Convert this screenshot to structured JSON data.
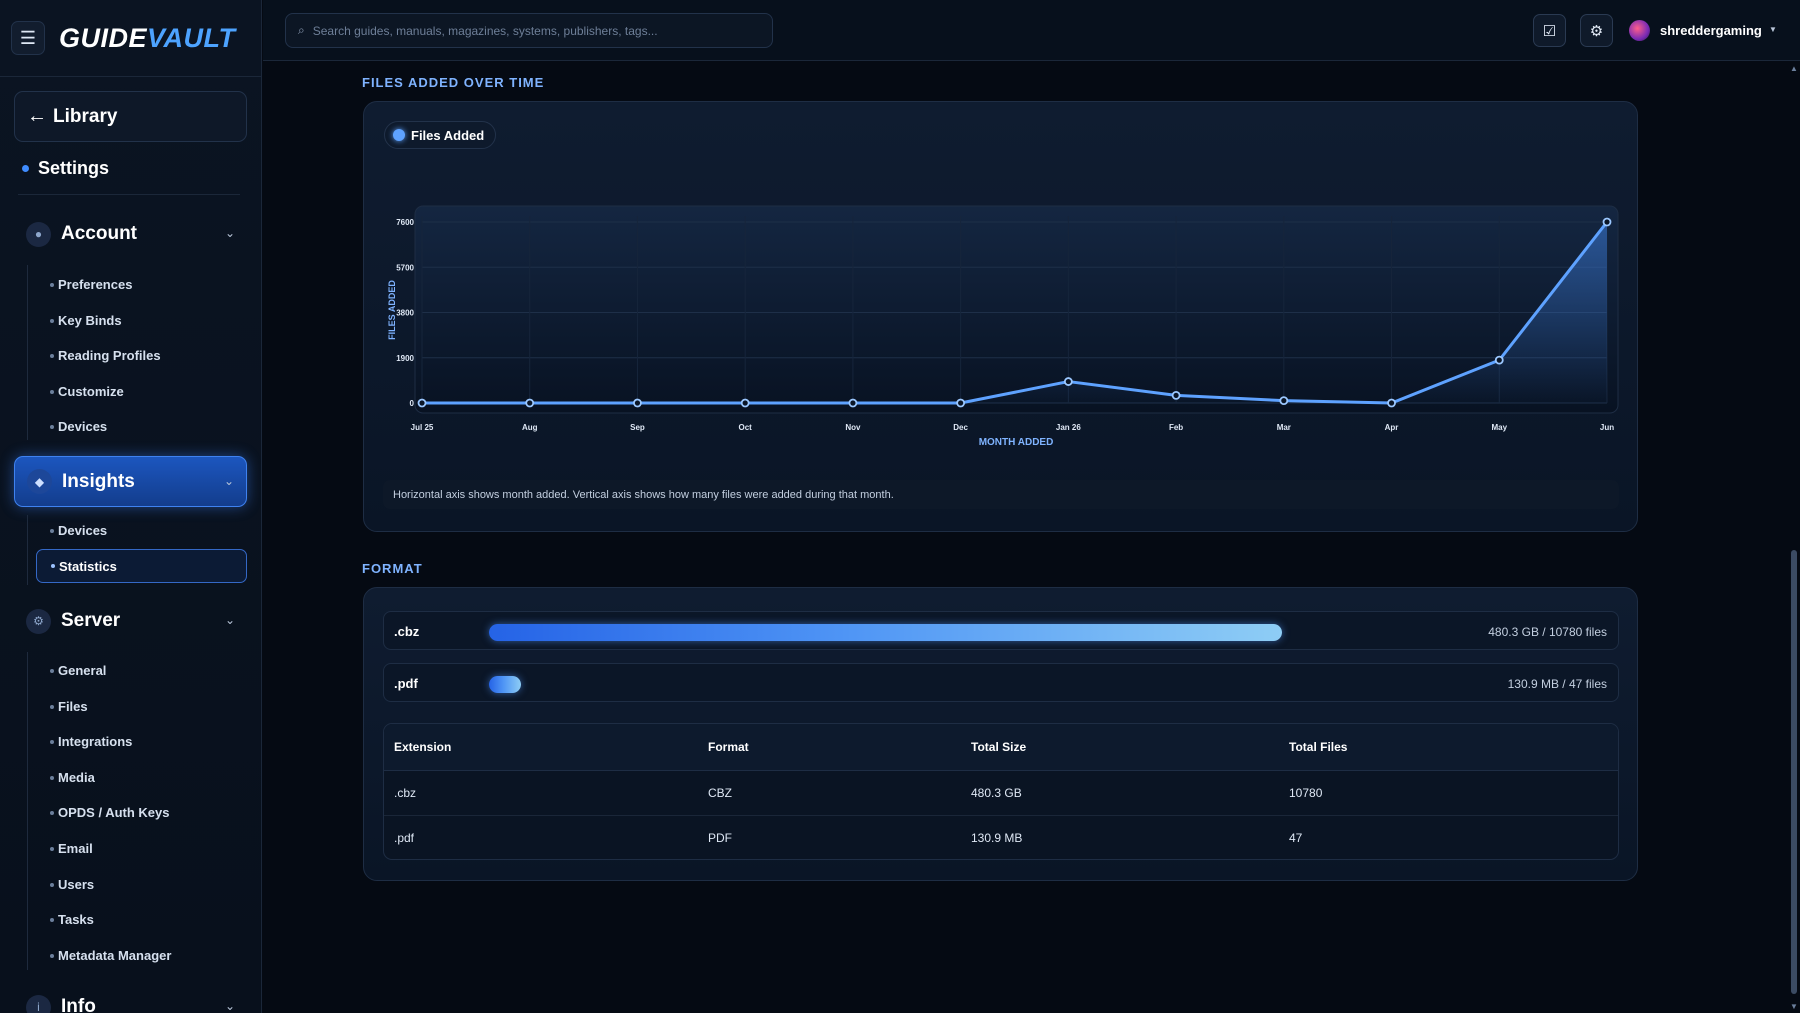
{
  "brand": {
    "part1": "GUIDE",
    "part2": "VAULT"
  },
  "sidebar": {
    "back_label": "Library",
    "settings_label": "Settings",
    "groups": {
      "account": {
        "label": "Account",
        "items": [
          "Preferences",
          "Key Binds",
          "Reading Profiles",
          "Customize",
          "Devices"
        ]
      },
      "insights": {
        "label": "Insights",
        "items": [
          "Devices"
        ],
        "active_item": "Statistics"
      },
      "server": {
        "label": "Server",
        "items": [
          "General",
          "Files",
          "Integrations",
          "Media",
          "OPDS / Auth Keys",
          "Email",
          "Users",
          "Tasks",
          "Metadata Manager"
        ]
      },
      "info": {
        "label": "Info"
      }
    }
  },
  "topbar": {
    "search_placeholder": "Search guides, manuals, magazines, systems, publishers, tags...",
    "username": "shreddergaming"
  },
  "files_section": {
    "title": "FILES ADDED OVER TIME",
    "note": "Horizontal axis shows month added. Vertical axis shows how many files were added during that month."
  },
  "chart_data": {
    "type": "line",
    "x": [
      "Jul 25",
      "Aug",
      "Sep",
      "Oct",
      "Nov",
      "Dec",
      "Jan 26",
      "Feb",
      "Mar",
      "Apr",
      "May",
      "Jun"
    ],
    "series": [
      {
        "name": "Files Added",
        "values": [
          0,
          0,
          0,
          0,
          0,
          0,
          900,
          320,
          100,
          0,
          1800,
          7600
        ]
      }
    ],
    "y_ticks": [
      0,
      1900,
      3800,
      5700,
      7600
    ],
    "ylim": [
      0,
      7600
    ],
    "xlabel": "MONTH ADDED",
    "ylabel": "FILES ADDED",
    "grid": true,
    "legend": "top-left",
    "color": "#5ea2ff"
  },
  "format_section": {
    "title": "FORMAT",
    "bars": [
      {
        "ext": ".cbz",
        "value": "480.3 GB / 10780 files",
        "fraction": 0.87
      },
      {
        "ext": ".pdf",
        "value": "130.9 MB / 47 files",
        "fraction": 0.035
      }
    ],
    "table": {
      "headers": [
        "Extension",
        "Format",
        "Total Size",
        "Total Files"
      ],
      "rows": [
        [
          ".cbz",
          "CBZ",
          "480.3 GB",
          "10780"
        ],
        [
          ".pdf",
          "PDF",
          "130.9 MB",
          "47"
        ]
      ]
    }
  }
}
